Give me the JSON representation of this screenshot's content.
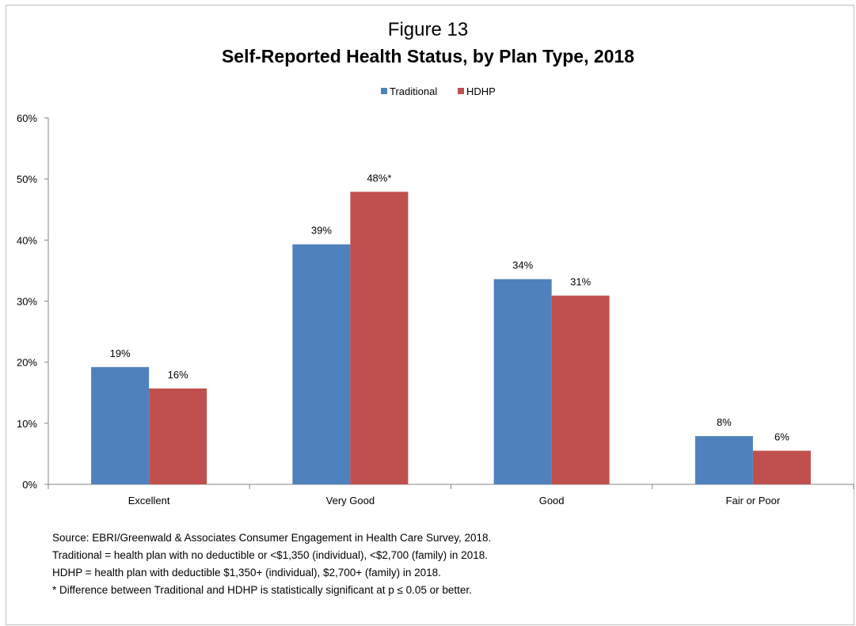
{
  "chart_data": {
    "type": "bar",
    "title_line1": "Figure 13",
    "title": "Self-Reported Health Status, by Plan Type, 2018",
    "xlabel": "",
    "ylabel": "",
    "ylim": [
      0,
      60
    ],
    "y_ticks": [
      "0%",
      "10%",
      "20%",
      "30%",
      "40%",
      "50%",
      "60%"
    ],
    "grid": false,
    "legend_position": "top-center",
    "categories": [
      "Excellent",
      "Very Good",
      "Good",
      "Fair or Poor"
    ],
    "series": [
      {
        "name": "Traditional",
        "color": "#4f81bd",
        "values": [
          19.2,
          39.3,
          33.6,
          7.9
        ],
        "labels": [
          "19%",
          "39%",
          "34%",
          "8%"
        ]
      },
      {
        "name": "HDHP",
        "color": "#c0504d",
        "values": [
          15.7,
          47.9,
          30.9,
          5.5
        ],
        "labels": [
          "16%",
          "48%*",
          "31%",
          "6%"
        ]
      }
    ]
  },
  "notes": [
    "Source: EBRI/Greenwald & Associates Consumer Engagement in Health Care Survey, 2018.",
    "Traditional = health plan with no deductible or <$1,350 (individual), <$2,700 (family) in 2018.",
    "HDHP = health plan with deductible $1,350+ (individual), $2,700+ (family) in 2018.",
    "* Difference between Traditional and HDHP is statistically significant at p ≤ 0.05 or better."
  ]
}
